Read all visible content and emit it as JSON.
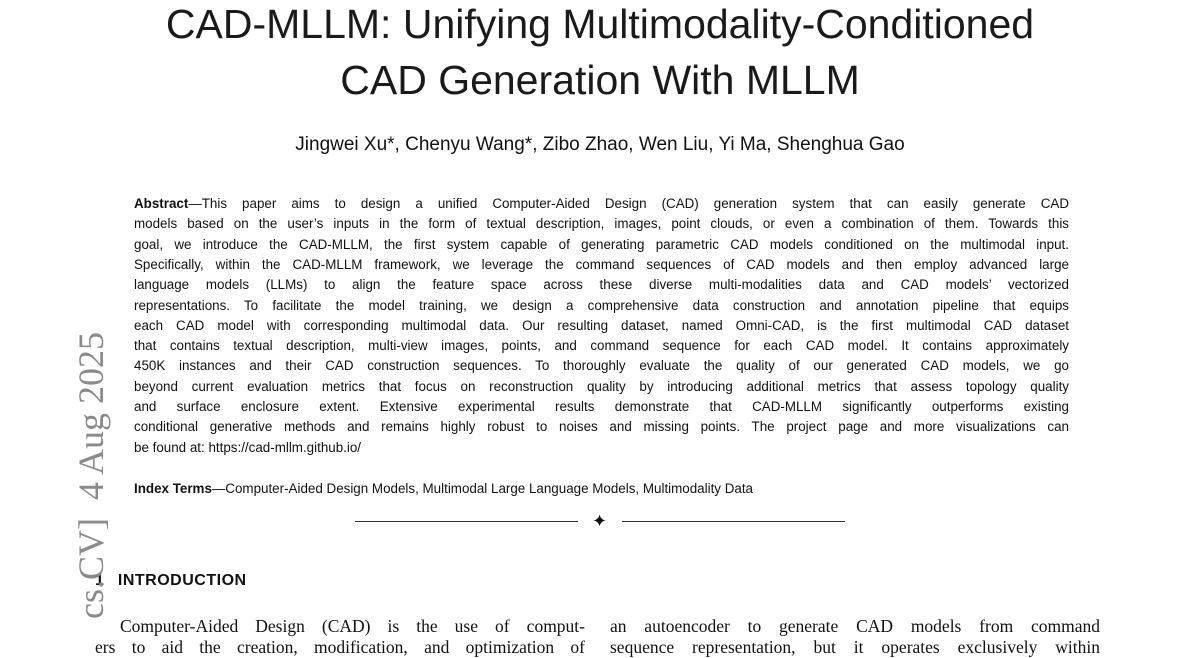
{
  "title_lines": [
    "CAD-MLLM: Unifying Multimodality-Conditioned",
    "CAD Generation With MLLM"
  ],
  "authors": "Jingwei Xu*, Chenyu Wang*, Zibo Zhao, Wen Liu, Yi Ma, Shenghua Gao",
  "abstract": {
    "label": "Abstract",
    "lines": [
      "—This paper aims to design a unified Computer-Aided Design (CAD) generation system that can easily generate CAD",
      "models based on the user’s inputs in the form of textual description, images, point clouds, or even a combination of them. Towards this",
      "goal, we introduce the CAD-MLLM, the first system capable of generating parametric CAD models conditioned on the multimodal input.",
      "Specifically, within the CAD-MLLM framework, we leverage the command sequences of CAD models and then employ advanced large",
      "language models (LLMs) to align the feature space across these diverse multi-modalities data and CAD models’ vectorized",
      "representations. To facilitate the model training, we design a comprehensive data construction and annotation pipeline that equips",
      "each CAD model with corresponding multimodal data. Our resulting dataset, named Omni-CAD, is the first multimodal CAD dataset",
      "that contains textual description, multi-view images, points, and command sequence for each CAD model. It contains approximately",
      "450K instances and their CAD construction sequences. To thoroughly evaluate the quality of our generated CAD models, we go",
      "beyond current evaluation metrics that focus on reconstruction quality by introducing additional metrics that assess topology quality",
      "and surface enclosure extent. Extensive experimental results demonstrate that CAD-MLLM significantly outperforms existing",
      "conditional generative methods and remains highly robust to noises and missing points. The project page and more visualizations can",
      "be found at: https://cad-mllm.github.io/"
    ]
  },
  "index_terms": {
    "label": "Index Terms",
    "text": "—Computer-Aided Design Models, Multimodal Large Language Models, Multimodality Data"
  },
  "section": {
    "number": "1",
    "title": "INTRODUCTION"
  },
  "columns": [
    [
      "Computer-Aided Design (CAD) is the use of comput-",
      "ers to aid the creation, modification, and optimization of"
    ],
    [
      "an autoencoder to generate CAD models from command",
      "sequence representation, but it operates exclusively within"
    ]
  ],
  "side_stamp": {
    "category": "cs.CV]",
    "date": "4 Aug 2025"
  }
}
